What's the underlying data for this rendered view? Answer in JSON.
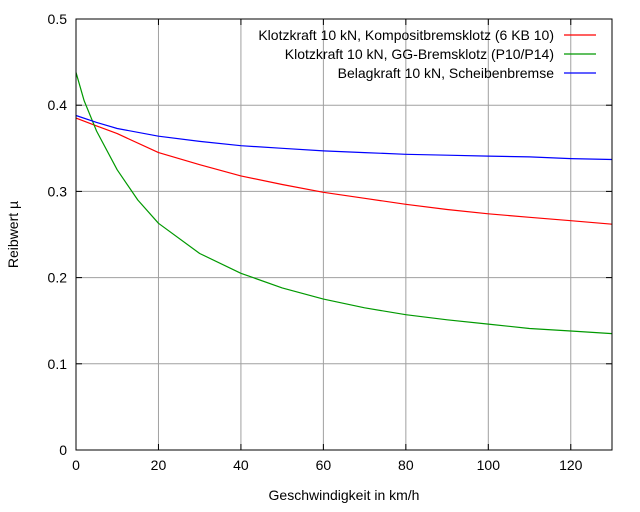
{
  "chart_data": {
    "type": "line",
    "title": "",
    "xlabel": "Geschwindigkeit in km/h",
    "ylabel": "Reibwert µ",
    "xlim": [
      0,
      130
    ],
    "ylim": [
      0,
      0.5
    ],
    "xticks": [
      0,
      20,
      40,
      60,
      80,
      100,
      120
    ],
    "xtick_labels": [
      "0",
      "20",
      "40",
      "60",
      "80",
      "100",
      "120"
    ],
    "yticks": [
      0,
      0.1,
      0.2,
      0.3,
      0.4,
      0.5
    ],
    "ytick_labels": [
      "0",
      "0.1",
      "0.2",
      "0.3",
      "0.4",
      "0.5"
    ],
    "grid": true,
    "legend_position": "top-right",
    "series": [
      {
        "name": "Klotzkraft 10 kN, Kompositbremsklotz (6 KB 10)",
        "color": "#ff0000",
        "x": [
          0,
          5,
          10,
          20,
          30,
          40,
          50,
          60,
          70,
          80,
          90,
          100,
          110,
          120,
          130
        ],
        "y": [
          0.385,
          0.376,
          0.367,
          0.345,
          0.331,
          0.318,
          0.308,
          0.299,
          0.292,
          0.285,
          0.279,
          0.274,
          0.27,
          0.266,
          0.262
        ]
      },
      {
        "name": "Klotzkraft 10 kN, GG-Bremsklotz (P10/P14)",
        "color": "#009900",
        "x": [
          0,
          2,
          5,
          10,
          15,
          20,
          30,
          40,
          50,
          60,
          70,
          80,
          90,
          100,
          110,
          120,
          130
        ],
        "y": [
          0.438,
          0.405,
          0.37,
          0.325,
          0.29,
          0.263,
          0.228,
          0.205,
          0.188,
          0.175,
          0.165,
          0.157,
          0.151,
          0.146,
          0.141,
          0.138,
          0.135
        ]
      },
      {
        "name": "Belagkraft 10 kN, Scheibenbremse",
        "color": "#0000ff",
        "x": [
          0,
          5,
          10,
          20,
          30,
          40,
          50,
          60,
          70,
          80,
          90,
          100,
          110,
          120,
          130
        ],
        "y": [
          0.388,
          0.38,
          0.373,
          0.364,
          0.358,
          0.353,
          0.35,
          0.347,
          0.345,
          0.343,
          0.342,
          0.341,
          0.34,
          0.338,
          0.337
        ]
      }
    ]
  }
}
